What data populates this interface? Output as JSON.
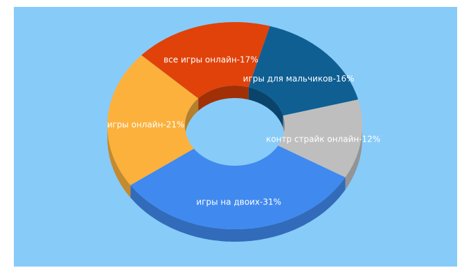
{
  "chart_data": {
    "type": "pie",
    "values": [
      16,
      12,
      31,
      21,
      17
    ],
    "value_labels": [
      "игры для мальчиков-16%",
      "контр страйк онлайн-12%",
      "игры на двоих-31%",
      "игры онлайн-21%",
      "все игры онлайн-17%"
    ],
    "colors": [
      "#0f5f93",
      "#bebebe",
      "#4089ef",
      "#fbb13c",
      "#e0420a"
    ]
  }
}
